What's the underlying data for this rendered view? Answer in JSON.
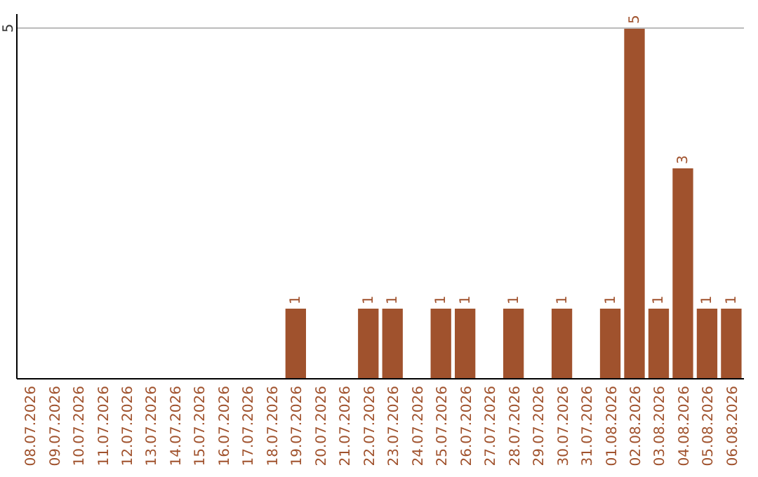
{
  "chart_data": {
    "type": "bar",
    "categories": [
      "08.07.2026",
      "09.07.2026",
      "10.07.2026",
      "11.07.2026",
      "12.07.2026",
      "13.07.2026",
      "14.07.2026",
      "15.07.2026",
      "16.07.2026",
      "17.07.2026",
      "18.07.2026",
      "19.07.2026",
      "20.07.2026",
      "21.07.2026",
      "22.07.2026",
      "23.07.2026",
      "24.07.2026",
      "25.07.2026",
      "26.07.2026",
      "27.07.2026",
      "28.07.2026",
      "29.07.2026",
      "30.07.2026",
      "31.07.2026",
      "01.08.2026",
      "02.08.2026",
      "03.08.2026",
      "04.08.2026",
      "05.08.2026",
      "06.08.2026"
    ],
    "values": [
      0,
      0,
      0,
      0,
      0,
      0,
      0,
      0,
      0,
      0,
      0,
      1,
      0,
      0,
      1,
      1,
      0,
      1,
      1,
      0,
      1,
      0,
      1,
      0,
      1,
      5,
      1,
      3,
      1,
      1
    ],
    "value_labels": [
      null,
      null,
      null,
      null,
      null,
      null,
      null,
      null,
      null,
      null,
      null,
      "1",
      null,
      null,
      "1",
      "1",
      null,
      "1",
      "1",
      null,
      "1",
      null,
      "1",
      null,
      "1",
      "5",
      "1",
      "3",
      "1",
      "1"
    ],
    "color": "#a0522d",
    "ylim": [
      0,
      5.2
    ],
    "yticks": [
      5
    ],
    "grid": "y"
  }
}
